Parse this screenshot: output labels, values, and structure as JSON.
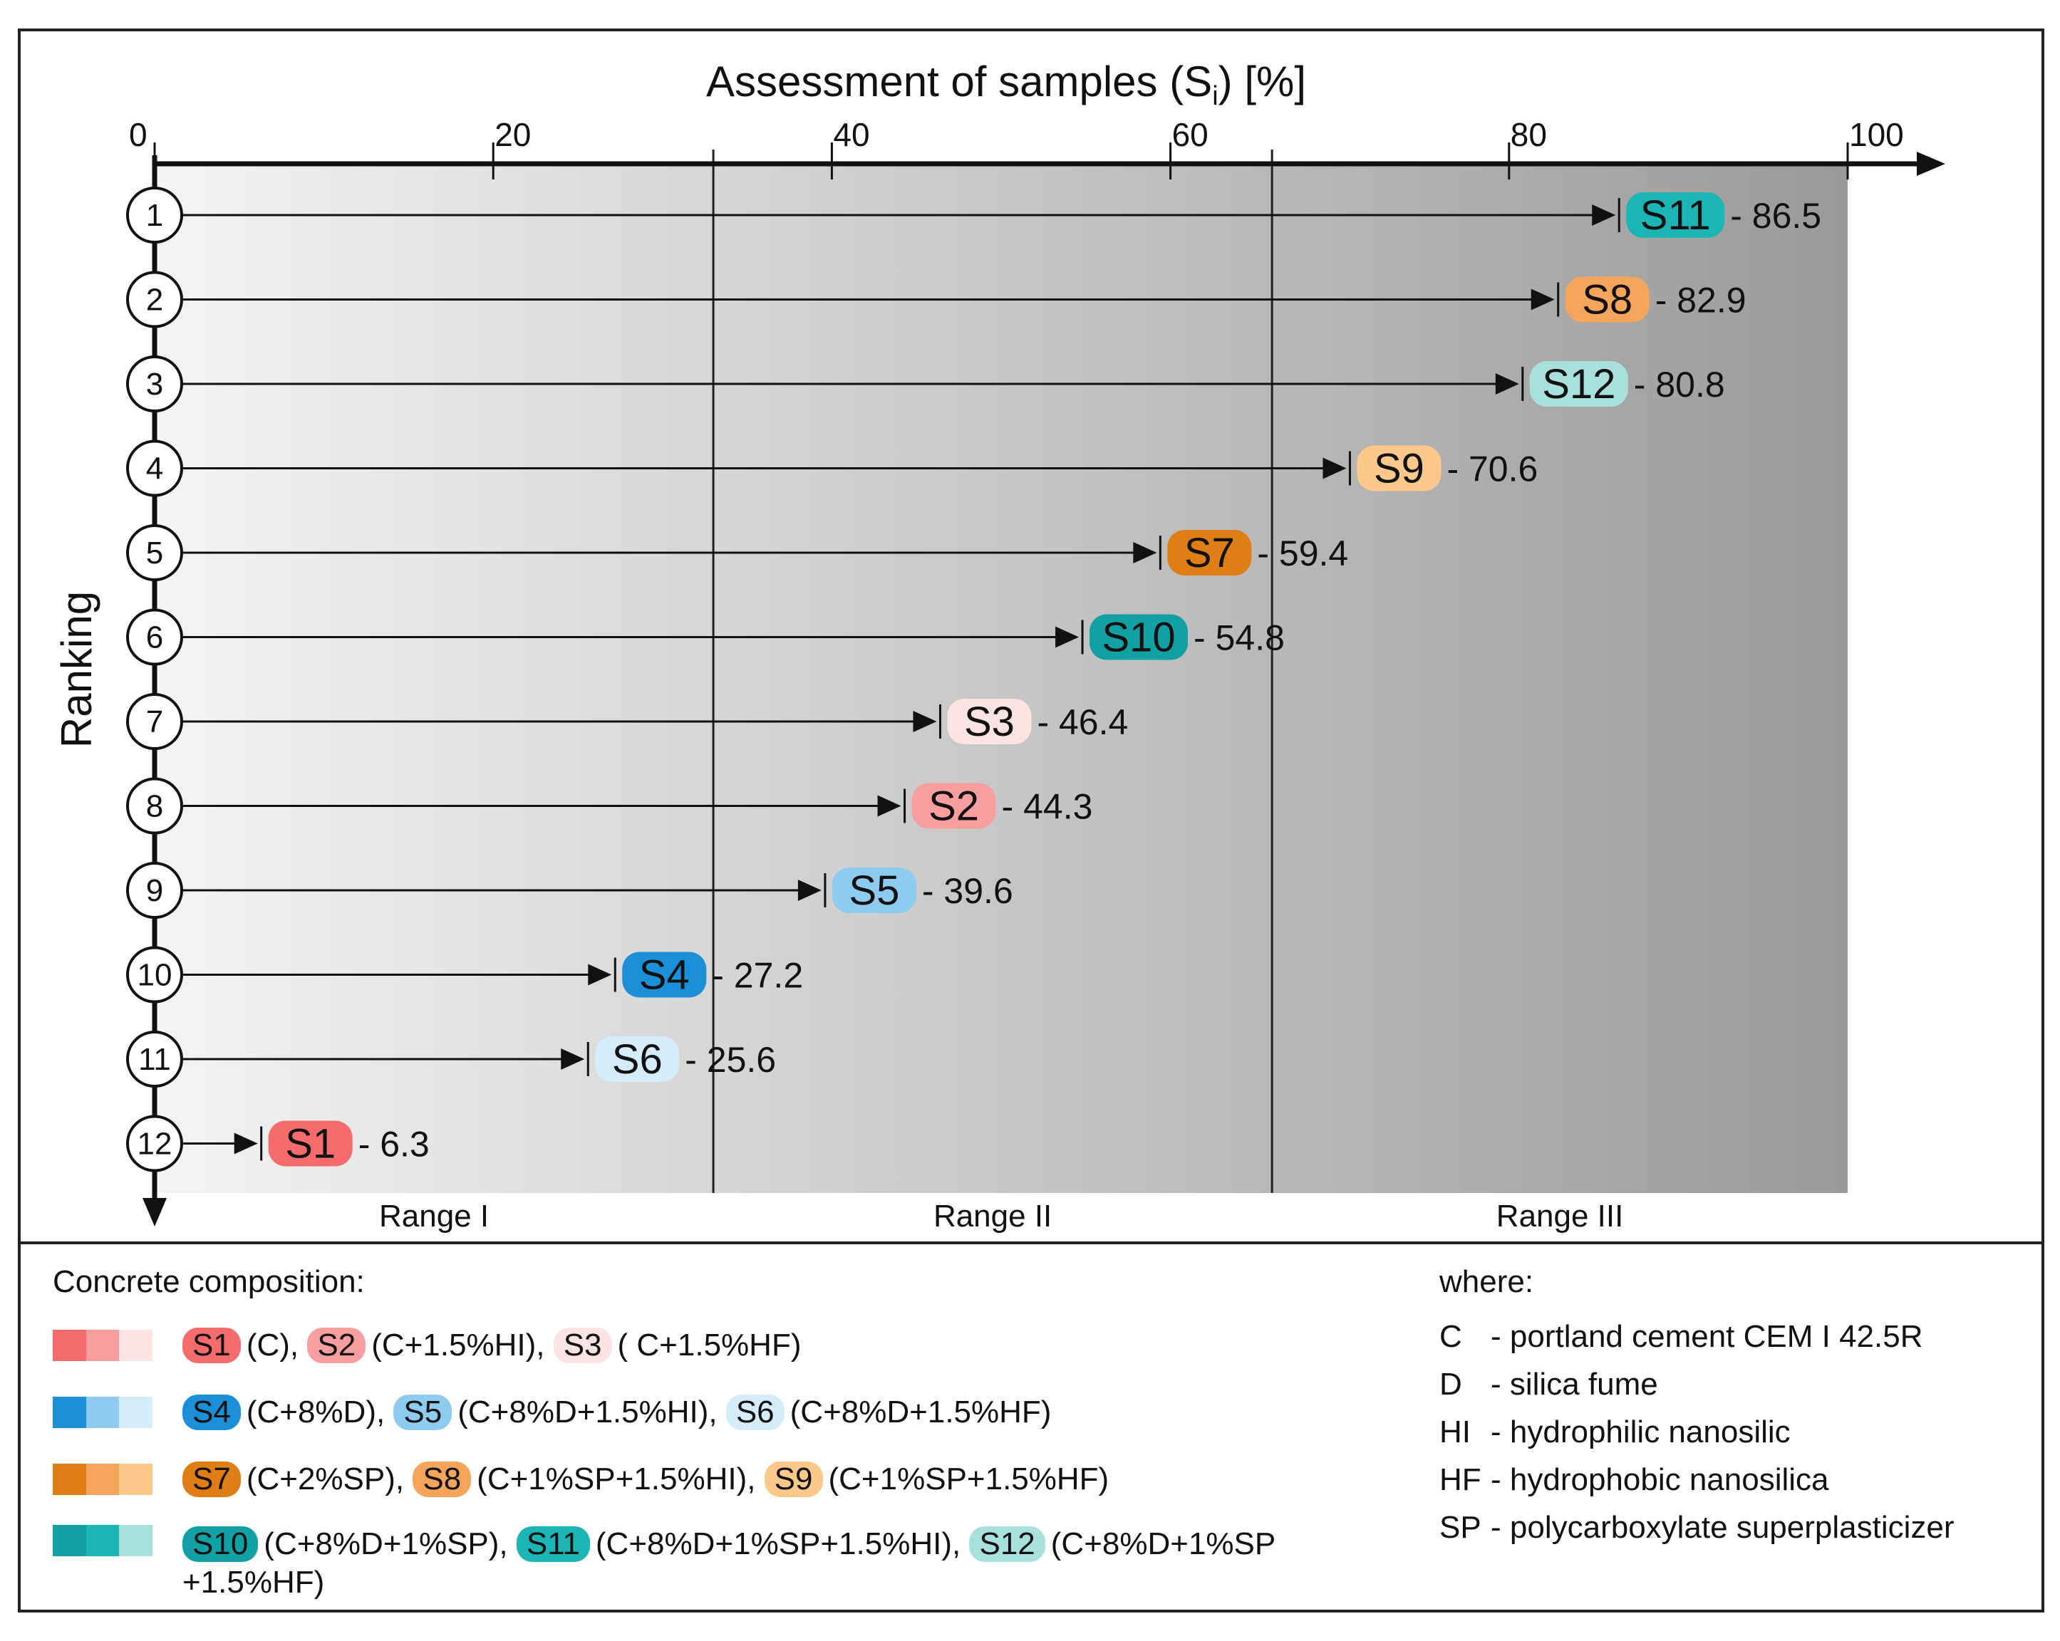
{
  "chart_data": {
    "type": "bar",
    "orientation": "horizontal",
    "title": "Assessment of samples  (S",
    "title_subscript": "i",
    "title_suffix": ") [%]",
    "ylabel": "Ranking",
    "xlim": [
      0,
      100
    ],
    "x_ticks": [
      "0",
      "20",
      "40",
      "60",
      "80",
      "100"
    ],
    "x_tick_values": [
      0,
      20,
      40,
      60,
      80,
      100
    ],
    "range_boundaries": [
      33,
      66
    ],
    "ranges": [
      "Range I",
      "Range II",
      "Range III"
    ],
    "ranks": [
      "1",
      "2",
      "3",
      "4",
      "5",
      "6",
      "7",
      "8",
      "9",
      "10",
      "11",
      "12"
    ],
    "samples": [
      {
        "rank": 1,
        "label": "S11",
        "value": 86.5,
        "value_text": "- 86.5",
        "color": "#1bb5b5"
      },
      {
        "rank": 2,
        "label": "S8",
        "value": 82.9,
        "value_text": "- 82.9",
        "color": "#f5a55a"
      },
      {
        "rank": 3,
        "label": "S12",
        "value": 80.8,
        "value_text": "- 80.8",
        "color": "#a8e0dc"
      },
      {
        "rank": 4,
        "label": "S9",
        "value": 70.6,
        "value_text": "- 70.6",
        "color": "#fcc98a"
      },
      {
        "rank": 5,
        "label": "S7",
        "value": 59.4,
        "value_text": "- 59.4",
        "color": "#e07e16"
      },
      {
        "rank": 6,
        "label": "S10",
        "value": 54.8,
        "value_text": "- 54.8",
        "color": "#11a0a3"
      },
      {
        "rank": 7,
        "label": "S3",
        "value": 46.4,
        "value_text": "- 46.4",
        "color": "#fde3e3"
      },
      {
        "rank": 8,
        "label": "S2",
        "value": 44.3,
        "value_text": "- 44.3",
        "color": "#f99e9e"
      },
      {
        "rank": 9,
        "label": "S5",
        "value": 39.6,
        "value_text": "- 39.6",
        "color": "#8ecbf0"
      },
      {
        "rank": 10,
        "label": "S4",
        "value": 27.2,
        "value_text": "- 27.2",
        "color": "#1b8fd8"
      },
      {
        "rank": 11,
        "label": "S6",
        "value": 25.6,
        "value_text": "- 25.6",
        "color": "#d5ecfb"
      },
      {
        "rank": 12,
        "label": "S1",
        "value": 6.3,
        "value_text": "- 6.3",
        "color": "#f66b6b"
      }
    ]
  },
  "legend": {
    "title": "Concrete composition:",
    "groups": [
      {
        "swatches": [
          "#f66b6b",
          "#f99e9e",
          "#fde3e3"
        ],
        "entries": [
          {
            "tag": "S1",
            "color": "#f66b6b",
            "text": "(C), "
          },
          {
            "tag": "S2",
            "color": "#f99e9e",
            "text": "(C+1.5%HI), "
          },
          {
            "tag": "S3",
            "color": "#fde3e3",
            "text": "( C+1.5%HF)"
          }
        ]
      },
      {
        "swatches": [
          "#1b8fd8",
          "#8ecbf0",
          "#d5ecfb"
        ],
        "entries": [
          {
            "tag": "S4",
            "color": "#1b8fd8",
            "text": "(C+8%D), "
          },
          {
            "tag": "S5",
            "color": "#8ecbf0",
            "text": "(C+8%D+1.5%HI), "
          },
          {
            "tag": "S6",
            "color": "#d5ecfb",
            "text": "(C+8%D+1.5%HF)"
          }
        ]
      },
      {
        "swatches": [
          "#e07e16",
          "#f5a55a",
          "#fcc98a"
        ],
        "entries": [
          {
            "tag": "S7",
            "color": "#e07e16",
            "text": "(C+2%SP), "
          },
          {
            "tag": "S8",
            "color": "#f5a55a",
            "text": "(C+1%SP+1.5%HI), "
          },
          {
            "tag": "S9",
            "color": "#fcc98a",
            "text": "(C+1%SP+1.5%HF)"
          }
        ]
      },
      {
        "swatches": [
          "#11a0a3",
          "#1bb5b5",
          "#a8e0dc"
        ],
        "entries": [
          {
            "tag": "S10",
            "color": "#11a0a3",
            "text": "(C+8%D+1%SP), "
          },
          {
            "tag": "S11",
            "color": "#1bb5b5",
            "text": "(C+8%D+1%SP+1.5%HI), "
          },
          {
            "tag": "S12",
            "color": "#a8e0dc",
            "text": "(C+8%D+1%SP +1.5%HF)"
          }
        ]
      }
    ]
  },
  "notes": {
    "title": "where:",
    "items": [
      {
        "abbr": "C",
        "text": "- portland cement CEM I 42.5R"
      },
      {
        "abbr": "D",
        "text": "- silica fume"
      },
      {
        "abbr": "HI",
        "text": "- hydrophilic nanosilic"
      },
      {
        "abbr": "HF",
        "text": "- hydrophobic nanosilica"
      },
      {
        "abbr": "SP",
        "text": "- polycarboxylate superplasticizer"
      }
    ]
  }
}
